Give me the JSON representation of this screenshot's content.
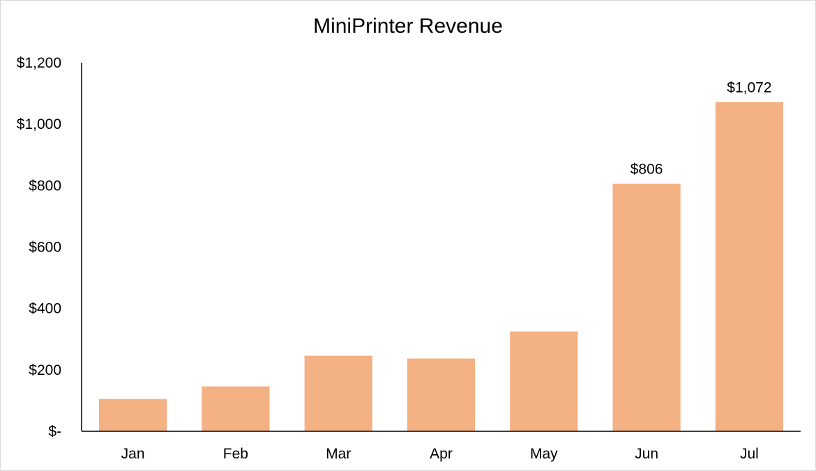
{
  "chart_data": {
    "type": "bar",
    "title": "MiniPrinter Revenue",
    "xlabel": "",
    "ylabel": "",
    "categories": [
      "Jan",
      "Feb",
      "Mar",
      "Apr",
      "May",
      "Jun",
      "Jul"
    ],
    "values": [
      105,
      146,
      246,
      237,
      325,
      806,
      1072
    ],
    "data_labels": [
      {
        "category": "Jun",
        "text": "$806"
      },
      {
        "category": "Jul",
        "text": "$1,072"
      }
    ],
    "ylim": [
      0,
      1200
    ],
    "y_ticks": [
      0,
      200,
      400,
      600,
      800,
      1000,
      1200
    ],
    "y_tick_labels": [
      "$-",
      "$200",
      "$400",
      "$600",
      "$800",
      "$1,000",
      "$1,200"
    ],
    "grid": false,
    "legend": "none",
    "bar_color": "#f4b183"
  }
}
